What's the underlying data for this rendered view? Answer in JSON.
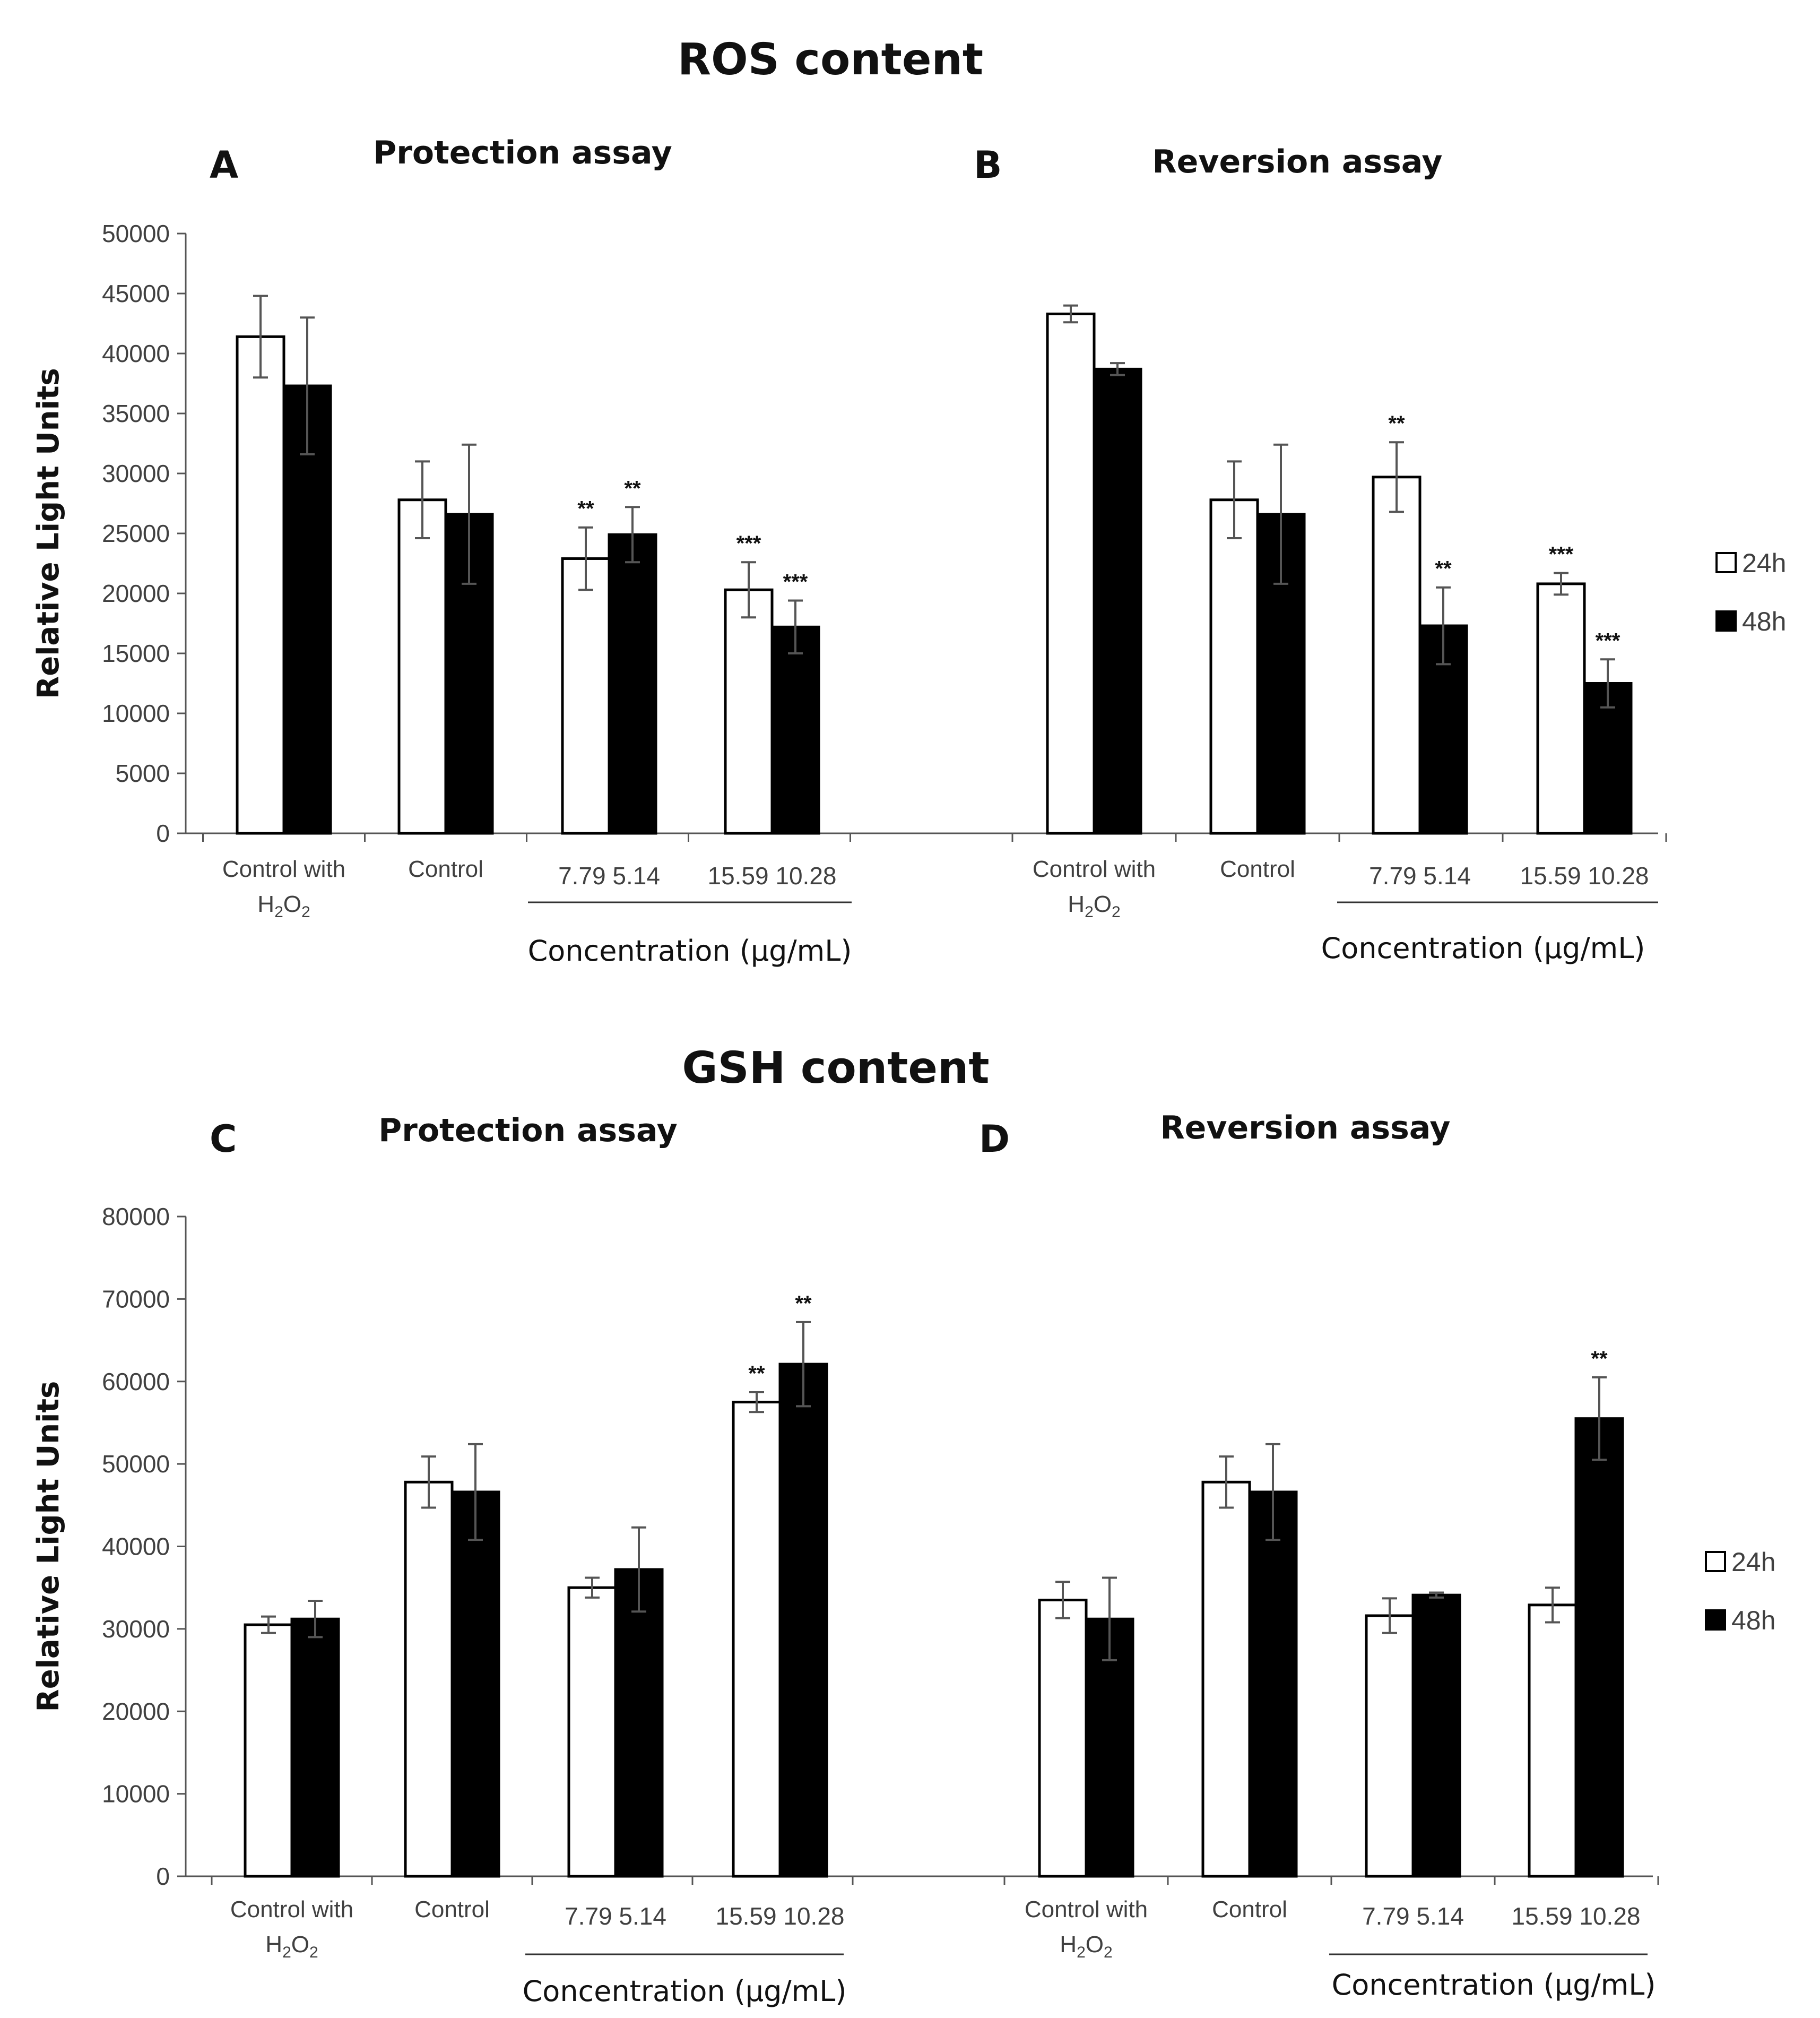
{
  "chart_data": [
    {
      "type": "bar",
      "section_title": "ROS content",
      "panel": "A",
      "title": "Protection assay",
      "ylabel": "Relative Light Units",
      "xlabel": "Concentration (µg/mL)",
      "ylim": [
        0,
        50000
      ],
      "yticks": [
        0,
        5000,
        10000,
        15000,
        20000,
        25000,
        30000,
        35000,
        40000,
        45000,
        50000
      ],
      "groups": [
        {
          "label": "Control with",
          "label2": "H",
          "sub2": "2",
          "label3": "O",
          "sub3": "2"
        },
        {
          "label": "Control"
        },
        {
          "label": "7.79  5.14"
        },
        {
          "label": "15.59  10.28"
        }
      ],
      "series": [
        {
          "name": "24h",
          "color": "#ffffff",
          "values": [
            41400,
            27800,
            22900,
            20300
          ],
          "errors": [
            3400,
            3200,
            2600,
            2300
          ],
          "sig": [
            "",
            "",
            "**",
            "***"
          ]
        },
        {
          "name": "48h",
          "color": "#000000",
          "values": [
            37300,
            26600,
            24900,
            17200
          ],
          "errors": [
            5700,
            5800,
            2300,
            2200
          ],
          "sig": [
            "",
            "",
            "**",
            "***"
          ]
        }
      ]
    },
    {
      "type": "bar",
      "panel": "B",
      "title": "Reversion assay",
      "xlabel": "Concentration (µg/mL)",
      "ylim": [
        0,
        50000
      ],
      "groups": [
        {
          "label": "Control with",
          "label2": "H",
          "sub2": "2",
          "label3": "O",
          "sub3": "2"
        },
        {
          "label": "Control"
        },
        {
          "label": "7.79  5.14"
        },
        {
          "label": "15.59  10.28"
        }
      ],
      "series": [
        {
          "name": "24h",
          "color": "#ffffff",
          "values": [
            43300,
            27800,
            29700,
            20800
          ],
          "errors": [
            700,
            3200,
            2900,
            900
          ],
          "sig": [
            "",
            "",
            "**",
            "***"
          ]
        },
        {
          "name": "48h",
          "color": "#000000",
          "values": [
            38700,
            26600,
            17300,
            12500
          ],
          "errors": [
            500,
            5800,
            3200,
            2000
          ],
          "sig": [
            "",
            "",
            "**",
            "***"
          ]
        }
      ],
      "legend": {
        "position": "right",
        "entries": [
          "24h",
          "48h"
        ]
      }
    },
    {
      "type": "bar",
      "section_title": "GSH content",
      "panel": "C",
      "title": "Protection assay",
      "ylabel": "Relative Light Units",
      "xlabel": "Concentration (µg/mL)",
      "ylim": [
        0,
        80000
      ],
      "yticks": [
        0,
        10000,
        20000,
        30000,
        40000,
        50000,
        60000,
        70000,
        80000
      ],
      "groups": [
        {
          "label": "Control with",
          "label2": "H",
          "sub2": "2",
          "label3": "O",
          "sub3": "2"
        },
        {
          "label": "Control"
        },
        {
          "label": "7.79  5.14"
        },
        {
          "label": "15.59  10.28"
        }
      ],
      "series": [
        {
          "name": "24h",
          "color": "#ffffff",
          "values": [
            30500,
            47800,
            35000,
            57500
          ],
          "errors": [
            1000,
            3100,
            1200,
            1200
          ],
          "sig": [
            "",
            "",
            "",
            "**"
          ]
        },
        {
          "name": "48h",
          "color": "#000000",
          "values": [
            31200,
            46600,
            37200,
            62100
          ],
          "errors": [
            2200,
            5800,
            5100,
            5100
          ],
          "sig": [
            "",
            "",
            "",
            "**"
          ]
        }
      ]
    },
    {
      "type": "bar",
      "panel": "D",
      "title": "Reversion assay",
      "xlabel": "Concentration (µg/mL)",
      "ylim": [
        0,
        80000
      ],
      "groups": [
        {
          "label": "Control with",
          "label2": "H",
          "sub2": "2",
          "label3": "O",
          "sub3": "2"
        },
        {
          "label": "Control"
        },
        {
          "label": "7.79  5.14"
        },
        {
          "label": "15.59  10.28"
        }
      ],
      "series": [
        {
          "name": "24h",
          "color": "#ffffff",
          "values": [
            33500,
            47800,
            31600,
            32900
          ],
          "errors": [
            2200,
            3100,
            2100,
            2100
          ],
          "sig": [
            "",
            "",
            "",
            ""
          ]
        },
        {
          "name": "48h",
          "color": "#000000",
          "values": [
            31200,
            46600,
            34100,
            55500
          ],
          "errors": [
            5000,
            5800,
            300,
            5000
          ],
          "sig": [
            "",
            "",
            "",
            "**"
          ]
        }
      ],
      "legend": {
        "position": "right",
        "entries": [
          "24h",
          "48h"
        ]
      }
    }
  ]
}
